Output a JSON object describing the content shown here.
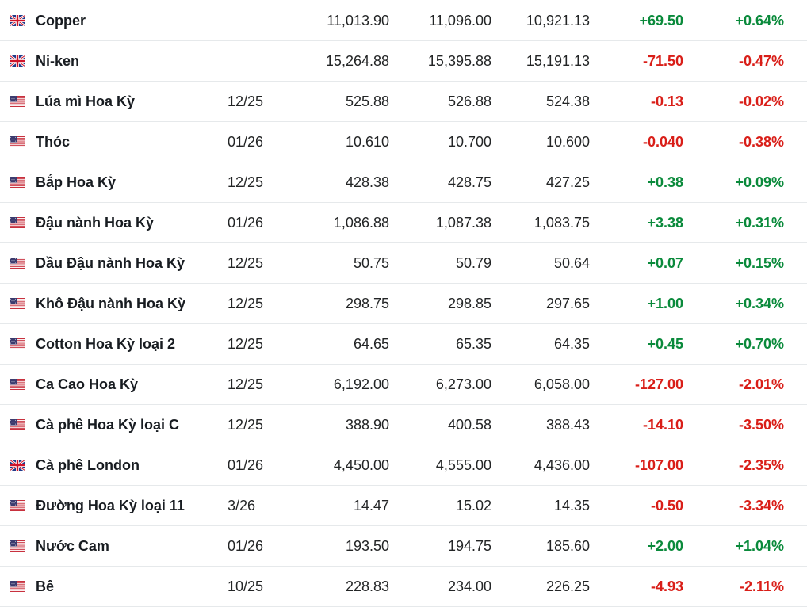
{
  "colors": {
    "positive": "#0a8a3b",
    "negative": "#d91e18"
  },
  "rows": [
    {
      "flag": "uk-flag-icon",
      "name": "Copper",
      "month": "",
      "last": "11,013.90",
      "high": "11,096.00",
      "low": "10,921.13",
      "change": "+69.50",
      "change_pct": "+0.64%",
      "direction": "pos"
    },
    {
      "flag": "uk-flag-icon",
      "name": "Ni-ken",
      "month": "",
      "last": "15,264.88",
      "high": "15,395.88",
      "low": "15,191.13",
      "change": "-71.50",
      "change_pct": "-0.47%",
      "direction": "neg"
    },
    {
      "flag": "us-flag-icon",
      "name": "Lúa mì Hoa Kỳ",
      "month": "12/25",
      "last": "525.88",
      "high": "526.88",
      "low": "524.38",
      "change": "-0.13",
      "change_pct": "-0.02%",
      "direction": "neg"
    },
    {
      "flag": "us-flag-icon",
      "name": "Thóc",
      "month": "01/26",
      "last": "10.610",
      "high": "10.700",
      "low": "10.600",
      "change": "-0.040",
      "change_pct": "-0.38%",
      "direction": "neg"
    },
    {
      "flag": "us-flag-icon",
      "name": "Bắp Hoa Kỳ",
      "month": "12/25",
      "last": "428.38",
      "high": "428.75",
      "low": "427.25",
      "change": "+0.38",
      "change_pct": "+0.09%",
      "direction": "pos"
    },
    {
      "flag": "us-flag-icon",
      "name": "Đậu nành Hoa Kỳ",
      "month": "01/26",
      "last": "1,086.88",
      "high": "1,087.38",
      "low": "1,083.75",
      "change": "+3.38",
      "change_pct": "+0.31%",
      "direction": "pos"
    },
    {
      "flag": "us-flag-icon",
      "name": "Dầu Đậu nành Hoa Kỳ",
      "month": "12/25",
      "last": "50.75",
      "high": "50.79",
      "low": "50.64",
      "change": "+0.07",
      "change_pct": "+0.15%",
      "direction": "pos"
    },
    {
      "flag": "us-flag-icon",
      "name": "Khô Đậu nành Hoa Kỳ",
      "month": "12/25",
      "last": "298.75",
      "high": "298.85",
      "low": "297.65",
      "change": "+1.00",
      "change_pct": "+0.34%",
      "direction": "pos"
    },
    {
      "flag": "us-flag-icon",
      "name": "Cotton Hoa Kỳ loại 2",
      "month": "12/25",
      "last": "64.65",
      "high": "65.35",
      "low": "64.35",
      "change": "+0.45",
      "change_pct": "+0.70%",
      "direction": "pos"
    },
    {
      "flag": "us-flag-icon",
      "name": "Ca Cao Hoa Kỳ",
      "month": "12/25",
      "last": "6,192.00",
      "high": "6,273.00",
      "low": "6,058.00",
      "change": "-127.00",
      "change_pct": "-2.01%",
      "direction": "neg"
    },
    {
      "flag": "us-flag-icon",
      "name": "Cà phê Hoa Kỳ loại C",
      "month": "12/25",
      "last": "388.90",
      "high": "400.58",
      "low": "388.43",
      "change": "-14.10",
      "change_pct": "-3.50%",
      "direction": "neg"
    },
    {
      "flag": "uk-flag-icon",
      "name": "Cà phê London",
      "month": "01/26",
      "last": "4,450.00",
      "high": "4,555.00",
      "low": "4,436.00",
      "change": "-107.00",
      "change_pct": "-2.35%",
      "direction": "neg"
    },
    {
      "flag": "us-flag-icon",
      "name": "Đường Hoa Kỳ loại 11",
      "month": "3/26",
      "last": "14.47",
      "high": "15.02",
      "low": "14.35",
      "change": "-0.50",
      "change_pct": "-3.34%",
      "direction": "neg"
    },
    {
      "flag": "us-flag-icon",
      "name": "Nước Cam",
      "month": "01/26",
      "last": "193.50",
      "high": "194.75",
      "low": "185.60",
      "change": "+2.00",
      "change_pct": "+1.04%",
      "direction": "pos"
    },
    {
      "flag": "us-flag-icon",
      "name": "Bê",
      "month": "10/25",
      "last": "228.83",
      "high": "234.00",
      "low": "226.25",
      "change": "-4.93",
      "change_pct": "-2.11%",
      "direction": "neg"
    }
  ]
}
